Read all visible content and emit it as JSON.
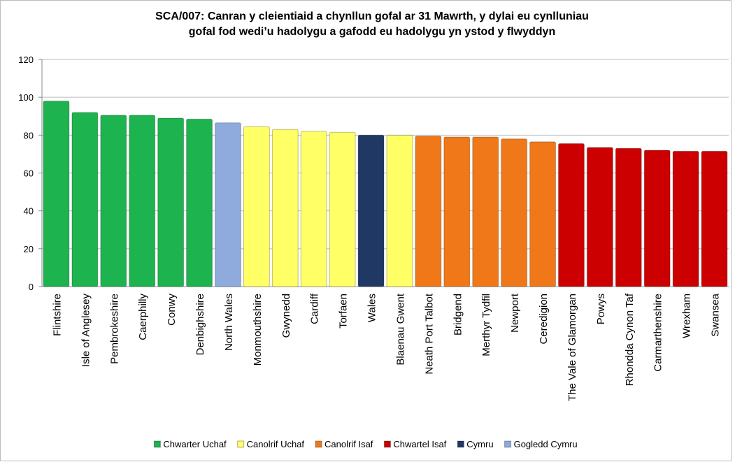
{
  "chart_data": {
    "type": "bar",
    "title": [
      "SCA/007: Canran y cleientiaid a chynllun gofal ar 31 Mawrth, y dylai eu cynlluniau",
      "gofal fod wedi’u hadolygu a gafodd eu hadolygu yn ystod y flwyddyn"
    ],
    "categories": [
      "Flintshire",
      "Isle of Anglesey",
      "Pembrokeshire",
      "Caerphilly",
      "Conwy",
      "Denbighshire",
      "North Wales",
      "Monmouthshire",
      "Gwynedd",
      "Cardiff",
      "Torfaen",
      "Wales",
      "Blaenau Gwent",
      "Neath Port Talbot",
      "Bridgend",
      "Merthyr Tydfil",
      "Newport",
      "Ceredigion",
      "The Vale of Glamorgan",
      "Powys",
      "Rhondda Cynon Taf",
      "Carmarthenshire",
      "Wrexham",
      "Swansea"
    ],
    "series": [
      {
        "name": "Chwarter Uchaf",
        "color": "#1db34f",
        "values": [
          98,
          92,
          90.5,
          90.5,
          89,
          88.5,
          null,
          null,
          null,
          null,
          null,
          null,
          null,
          null,
          null,
          null,
          null,
          null,
          null,
          null,
          null,
          null,
          null,
          null
        ]
      },
      {
        "name": "Canolrif Uchaf",
        "color": "#ffff66",
        "values": [
          null,
          null,
          null,
          null,
          null,
          null,
          null,
          84.5,
          83,
          82,
          81.5,
          null,
          80,
          null,
          null,
          null,
          null,
          null,
          null,
          null,
          null,
          null,
          null,
          null
        ]
      },
      {
        "name": "Canolrif Isaf",
        "color": "#f07818",
        "values": [
          null,
          null,
          null,
          null,
          null,
          null,
          null,
          null,
          null,
          null,
          null,
          null,
          null,
          79.5,
          79,
          79,
          78,
          76.5,
          null,
          null,
          null,
          null,
          null,
          null
        ]
      },
      {
        "name": "Chwartel Isaf",
        "color": "#cc0000",
        "values": [
          null,
          null,
          null,
          null,
          null,
          null,
          null,
          null,
          null,
          null,
          null,
          null,
          null,
          null,
          null,
          null,
          null,
          null,
          75.5,
          73.5,
          73,
          72,
          71.5,
          71.5
        ]
      },
      {
        "name": "Cymru",
        "color": "#1f3864",
        "values": [
          null,
          null,
          null,
          null,
          null,
          null,
          null,
          null,
          null,
          null,
          null,
          80,
          null,
          null,
          null,
          null,
          null,
          null,
          null,
          null,
          null,
          null,
          null,
          null
        ]
      },
      {
        "name": "Gogledd Cymru",
        "color": "#8faadc",
        "values": [
          null,
          null,
          null,
          null,
          null,
          null,
          86.5,
          null,
          null,
          null,
          null,
          null,
          null,
          null,
          null,
          null,
          null,
          null,
          null,
          null,
          null,
          null,
          null,
          null
        ]
      }
    ],
    "ylim": [
      0,
      120
    ],
    "yticks": [
      0,
      20,
      40,
      60,
      80,
      100,
      120
    ],
    "grid": true,
    "legend": "bottom"
  }
}
